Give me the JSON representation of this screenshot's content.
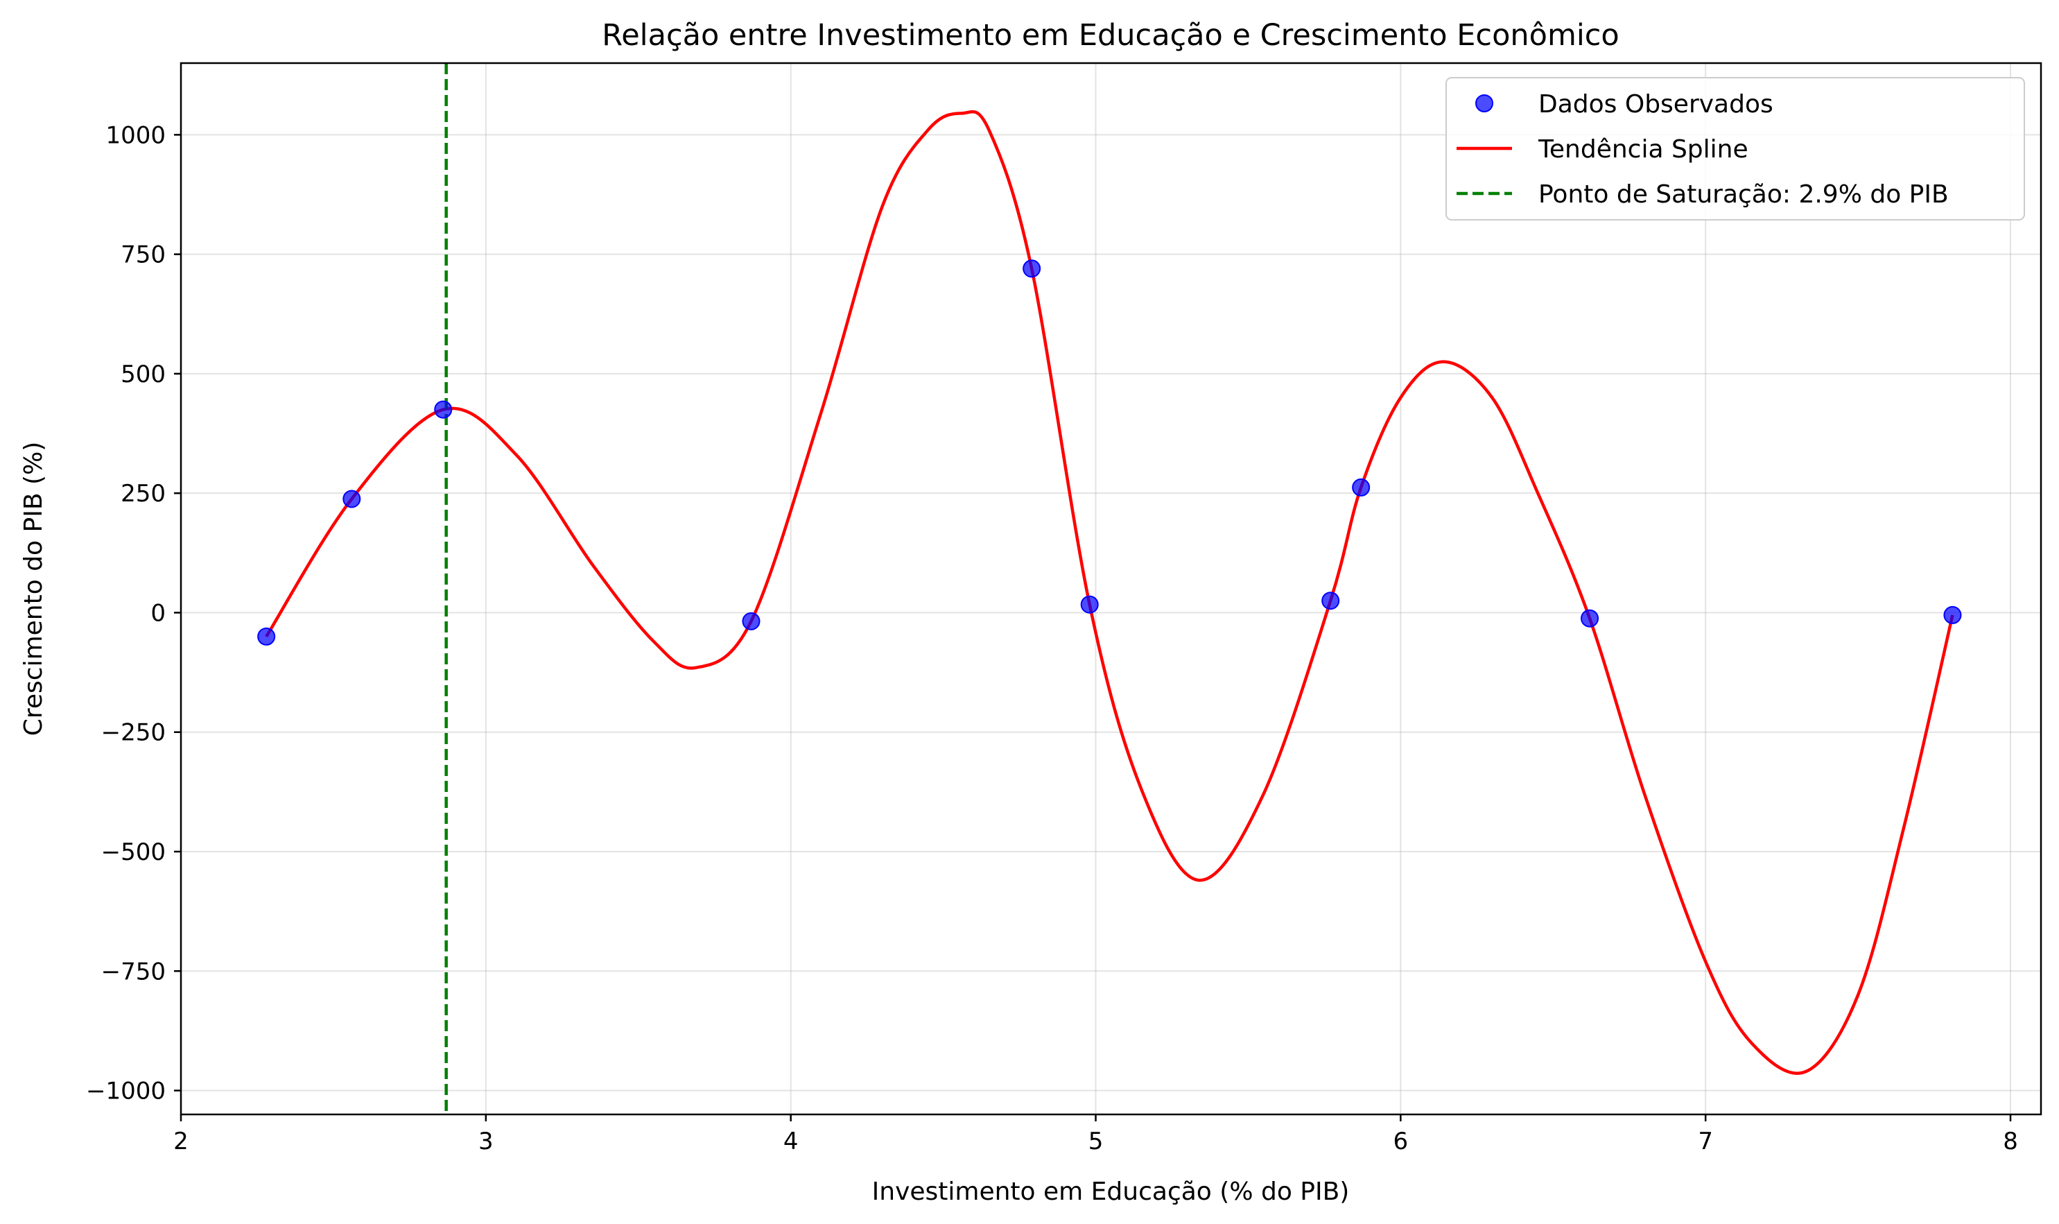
{
  "chart_data": {
    "type": "line",
    "title": "Relação entre Investimento em Educação e Crescimento Econômico",
    "xlabel": "Investimento em Educação (% do PIB)",
    "ylabel": "Crescimento do PIB (%)",
    "xlim": [
      2.0,
      8.1
    ],
    "ylim": [
      -1050,
      1150
    ],
    "x_ticks": [
      2,
      3,
      4,
      5,
      6,
      7,
      8
    ],
    "x_tick_labels": [
      "2",
      "3",
      "4",
      "5",
      "6",
      "7",
      "8"
    ],
    "y_ticks": [
      -1000,
      -750,
      -500,
      -250,
      0,
      250,
      500,
      750,
      1000
    ],
    "y_tick_labels": [
      "−1000",
      "−750",
      "−500",
      "−250",
      "0",
      "250",
      "500",
      "750",
      "1000"
    ],
    "grid": true,
    "legend_position": "top-right",
    "colors": {
      "observed": "#0000ff",
      "spline": "#ff0000",
      "saturation": "#008000"
    },
    "observed": {
      "name": "Dados Observados",
      "x": [
        2.28,
        2.56,
        2.86,
        3.87,
        4.79,
        4.98,
        5.77,
        5.87,
        6.62,
        7.81
      ],
      "y": [
        -50,
        238,
        425,
        -18,
        720,
        17,
        25,
        262,
        -12,
        -5
      ]
    },
    "spline": {
      "name": "Tendência Spline",
      "x": [
        2.28,
        2.56,
        2.86,
        3.1,
        3.35,
        3.55,
        3.69,
        3.87,
        4.1,
        4.3,
        4.45,
        4.56,
        4.65,
        4.79,
        4.98,
        5.15,
        5.34,
        5.55,
        5.77,
        5.87,
        6.0,
        6.14,
        6.3,
        6.45,
        6.62,
        6.8,
        7.0,
        7.15,
        7.33,
        7.5,
        7.65,
        7.81
      ],
      "y": [
        -50,
        238,
        425,
        330,
        100,
        -60,
        -115,
        -18,
        420,
        850,
        1010,
        1045,
        1010,
        720,
        17,
        -370,
        -560,
        -380,
        25,
        262,
        450,
        525,
        450,
        250,
        -12,
        -380,
        -730,
        -900,
        -960,
        -800,
        -450,
        -5
      ]
    },
    "saturation": {
      "name": "Ponto de Saturação: 2.9% do PIB",
      "x": 2.87
    }
  }
}
